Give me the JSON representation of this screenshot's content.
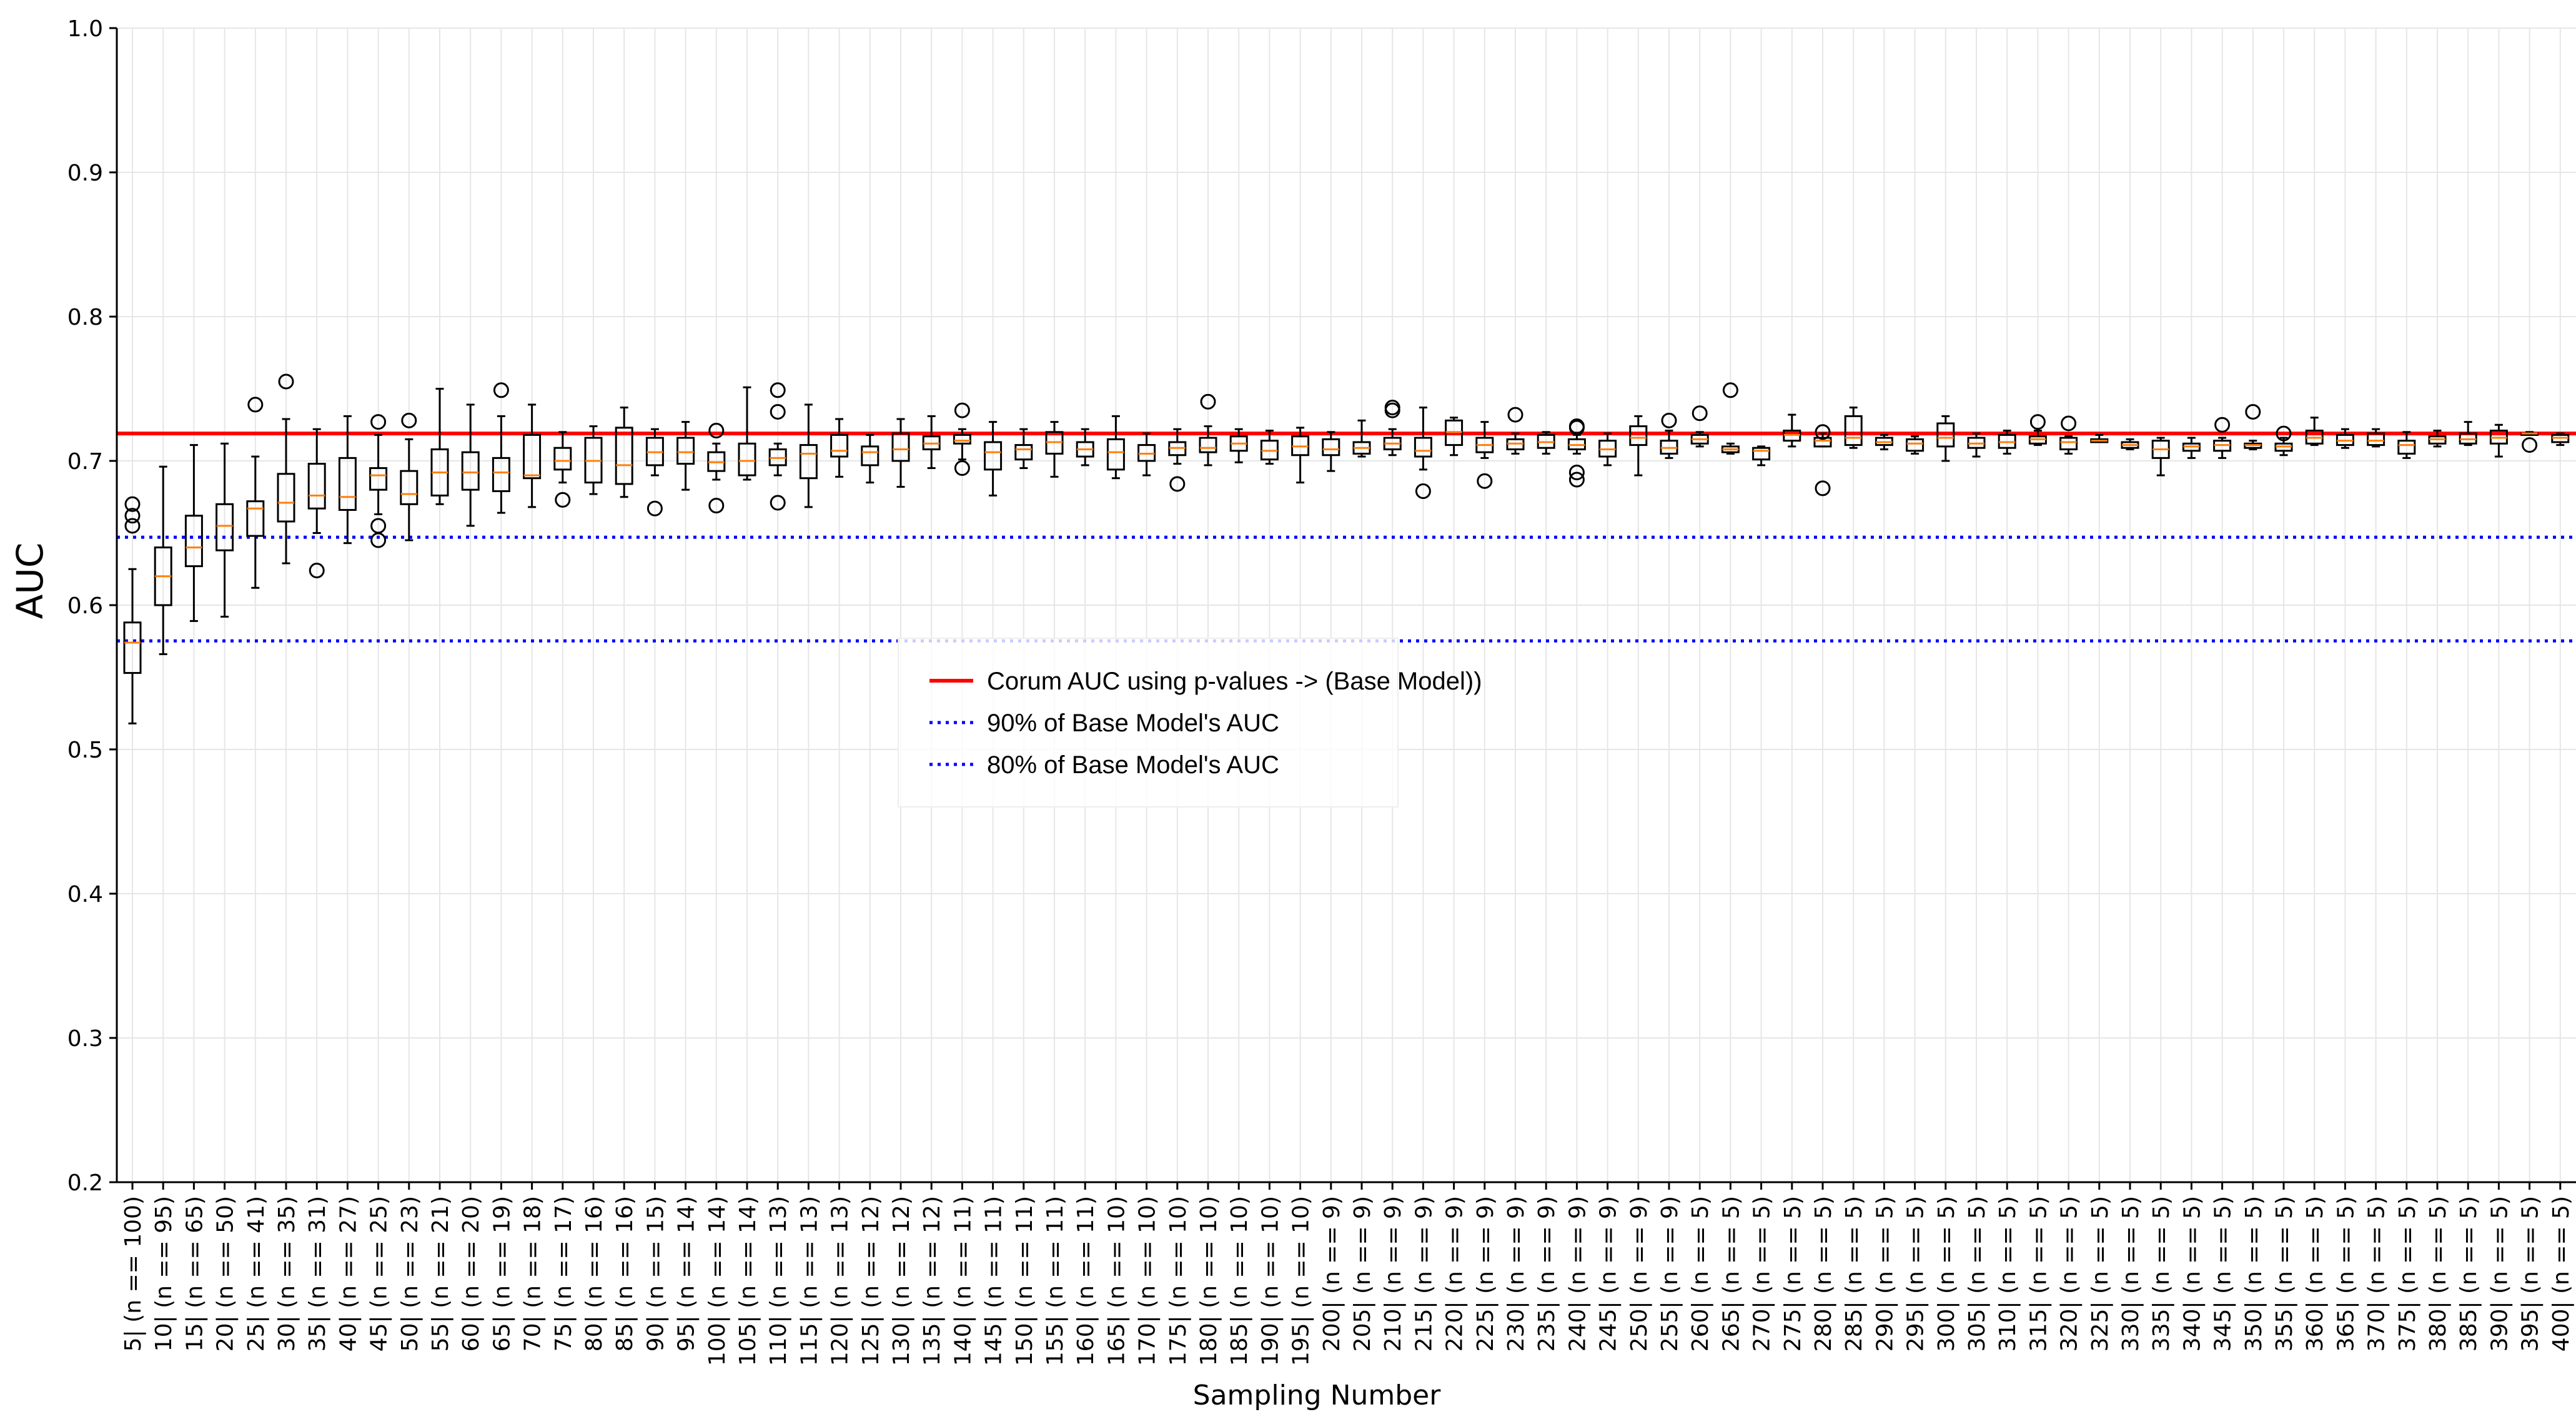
{
  "chart_data": {
    "type": "box",
    "xlabel": "Sampling Number",
    "ylabel": "AUC",
    "ylim": [
      0.2,
      1.0
    ],
    "yticks": [
      "0.2",
      "0.3",
      "0.4",
      "0.5",
      "0.6",
      "0.7",
      "0.8",
      "0.9",
      "1.0"
    ],
    "grid": true,
    "legend_position": "center",
    "categories": [
      "5| (n == 100)",
      "10| (n == 95)",
      "15| (n == 65)",
      "20| (n == 50)",
      "25| (n == 41)",
      "30| (n == 35)",
      "35| (n == 31)",
      "40| (n == 27)",
      "45| (n == 25)",
      "50| (n == 23)",
      "55| (n == 21)",
      "60| (n == 20)",
      "65| (n == 19)",
      "70| (n == 18)",
      "75| (n == 17)",
      "80| (n == 16)",
      "85| (n == 16)",
      "90| (n == 15)",
      "95| (n == 14)",
      "100| (n == 14)",
      "105| (n == 14)",
      "110| (n == 13)",
      "115| (n == 13)",
      "120| (n == 13)",
      "125| (n == 12)",
      "130| (n == 12)",
      "135| (n == 12)",
      "140| (n == 11)",
      "145| (n == 11)",
      "150| (n == 11)",
      "155| (n == 11)",
      "160| (n == 11)",
      "165| (n == 10)",
      "170| (n == 10)",
      "175| (n == 10)",
      "180| (n == 10)",
      "185| (n == 10)",
      "190| (n == 10)",
      "195| (n == 10)",
      "200| (n == 9)",
      "205| (n == 9)",
      "210| (n == 9)",
      "215| (n == 9)",
      "220| (n == 9)",
      "225| (n == 9)",
      "230| (n == 9)",
      "235| (n == 9)",
      "240| (n == 9)",
      "245| (n == 9)",
      "250| (n == 9)",
      "255| (n == 9)",
      "260| (n == 5)",
      "265| (n == 5)",
      "270| (n == 5)",
      "275| (n == 5)",
      "280| (n == 5)",
      "285| (n == 5)",
      "290| (n == 5)",
      "295| (n == 5)",
      "300| (n == 5)",
      "305| (n == 5)",
      "310| (n == 5)",
      "315| (n == 5)",
      "320| (n == 5)",
      "325| (n == 5)",
      "330| (n == 5)",
      "335| (n == 5)",
      "340| (n == 5)",
      "345| (n == 5)",
      "350| (n == 5)",
      "355| (n == 5)",
      "360| (n == 5)",
      "365| (n == 5)",
      "370| (n == 5)",
      "375| (n == 5)",
      "380| (n == 5)",
      "385| (n == 5)",
      "390| (n == 5)",
      "395| (n == 5)",
      "400| (n == 5)"
    ],
    "boxes": [
      {
        "whislo": 0.518,
        "q1": 0.553,
        "med": 0.574,
        "q3": 0.588,
        "whishi": 0.625,
        "fliers": [
          0.655,
          0.662,
          0.67
        ]
      },
      {
        "whislo": 0.566,
        "q1": 0.6,
        "med": 0.62,
        "q3": 0.64,
        "whishi": 0.696,
        "fliers": []
      },
      {
        "whislo": 0.589,
        "q1": 0.627,
        "med": 0.64,
        "q3": 0.662,
        "whishi": 0.711,
        "fliers": []
      },
      {
        "whislo": 0.592,
        "q1": 0.638,
        "med": 0.655,
        "q3": 0.67,
        "whishi": 0.712,
        "fliers": []
      },
      {
        "whislo": 0.612,
        "q1": 0.648,
        "med": 0.667,
        "q3": 0.672,
        "whishi": 0.703,
        "fliers": [
          0.739
        ]
      },
      {
        "whislo": 0.629,
        "q1": 0.658,
        "med": 0.671,
        "q3": 0.691,
        "whishi": 0.729,
        "fliers": [
          0.755
        ]
      },
      {
        "whislo": 0.65,
        "q1": 0.667,
        "med": 0.676,
        "q3": 0.698,
        "whishi": 0.722,
        "fliers": [
          0.624
        ]
      },
      {
        "whislo": 0.643,
        "q1": 0.666,
        "med": 0.675,
        "q3": 0.702,
        "whishi": 0.731,
        "fliers": []
      },
      {
        "whislo": 0.663,
        "q1": 0.68,
        "med": 0.69,
        "q3": 0.695,
        "whishi": 0.718,
        "fliers": [
          0.645,
          0.655,
          0.727
        ]
      },
      {
        "whislo": 0.645,
        "q1": 0.67,
        "med": 0.677,
        "q3": 0.693,
        "whishi": 0.715,
        "fliers": [
          0.728
        ]
      },
      {
        "whislo": 0.67,
        "q1": 0.676,
        "med": 0.692,
        "q3": 0.708,
        "whishi": 0.75,
        "fliers": []
      },
      {
        "whislo": 0.655,
        "q1": 0.68,
        "med": 0.692,
        "q3": 0.706,
        "whishi": 0.739,
        "fliers": []
      },
      {
        "whislo": 0.664,
        "q1": 0.679,
        "med": 0.692,
        "q3": 0.702,
        "whishi": 0.731,
        "fliers": [
          0.749
        ]
      },
      {
        "whislo": 0.668,
        "q1": 0.688,
        "med": 0.69,
        "q3": 0.718,
        "whishi": 0.739,
        "fliers": []
      },
      {
        "whislo": 0.685,
        "q1": 0.694,
        "med": 0.7,
        "q3": 0.709,
        "whishi": 0.72,
        "fliers": [
          0.673
        ]
      },
      {
        "whislo": 0.677,
        "q1": 0.685,
        "med": 0.7,
        "q3": 0.716,
        "whishi": 0.724,
        "fliers": []
      },
      {
        "whislo": 0.675,
        "q1": 0.684,
        "med": 0.697,
        "q3": 0.723,
        "whishi": 0.737,
        "fliers": []
      },
      {
        "whislo": 0.69,
        "q1": 0.697,
        "med": 0.706,
        "q3": 0.716,
        "whishi": 0.722,
        "fliers": [
          0.667
        ]
      },
      {
        "whislo": 0.68,
        "q1": 0.698,
        "med": 0.706,
        "q3": 0.716,
        "whishi": 0.727,
        "fliers": []
      },
      {
        "whislo": 0.687,
        "q1": 0.693,
        "med": 0.699,
        "q3": 0.706,
        "whishi": 0.712,
        "fliers": [
          0.669,
          0.721
        ]
      },
      {
        "whislo": 0.687,
        "q1": 0.69,
        "med": 0.7,
        "q3": 0.712,
        "whishi": 0.751,
        "fliers": []
      },
      {
        "whislo": 0.69,
        "q1": 0.697,
        "med": 0.702,
        "q3": 0.708,
        "whishi": 0.712,
        "fliers": [
          0.671,
          0.734,
          0.749
        ]
      },
      {
        "whislo": 0.668,
        "q1": 0.688,
        "med": 0.705,
        "q3": 0.711,
        "whishi": 0.739,
        "fliers": []
      },
      {
        "whislo": 0.689,
        "q1": 0.703,
        "med": 0.707,
        "q3": 0.718,
        "whishi": 0.729,
        "fliers": []
      },
      {
        "whislo": 0.685,
        "q1": 0.697,
        "med": 0.706,
        "q3": 0.71,
        "whishi": 0.718,
        "fliers": []
      },
      {
        "whislo": 0.682,
        "q1": 0.7,
        "med": 0.708,
        "q3": 0.719,
        "whishi": 0.729,
        "fliers": []
      },
      {
        "whislo": 0.695,
        "q1": 0.708,
        "med": 0.712,
        "q3": 0.717,
        "whishi": 0.731,
        "fliers": []
      },
      {
        "whislo": 0.701,
        "q1": 0.712,
        "med": 0.714,
        "q3": 0.718,
        "whishi": 0.722,
        "fliers": [
          0.695,
          0.735
        ]
      },
      {
        "whislo": 0.676,
        "q1": 0.694,
        "med": 0.706,
        "q3": 0.713,
        "whishi": 0.727,
        "fliers": []
      },
      {
        "whislo": 0.695,
        "q1": 0.701,
        "med": 0.708,
        "q3": 0.711,
        "whishi": 0.722,
        "fliers": []
      },
      {
        "whislo": 0.689,
        "q1": 0.705,
        "med": 0.713,
        "q3": 0.72,
        "whishi": 0.727,
        "fliers": []
      },
      {
        "whislo": 0.697,
        "q1": 0.703,
        "med": 0.708,
        "q3": 0.713,
        "whishi": 0.722,
        "fliers": []
      },
      {
        "whislo": 0.688,
        "q1": 0.694,
        "med": 0.706,
        "q3": 0.715,
        "whishi": 0.731,
        "fliers": []
      },
      {
        "whislo": 0.69,
        "q1": 0.7,
        "med": 0.705,
        "q3": 0.711,
        "whishi": 0.719,
        "fliers": []
      },
      {
        "whislo": 0.698,
        "q1": 0.704,
        "med": 0.709,
        "q3": 0.713,
        "whishi": 0.722,
        "fliers": [
          0.684
        ]
      },
      {
        "whislo": 0.697,
        "q1": 0.706,
        "med": 0.709,
        "q3": 0.716,
        "whishi": 0.724,
        "fliers": [
          0.741
        ]
      },
      {
        "whislo": 0.699,
        "q1": 0.707,
        "med": 0.712,
        "q3": 0.717,
        "whishi": 0.722,
        "fliers": []
      },
      {
        "whislo": 0.698,
        "q1": 0.701,
        "med": 0.707,
        "q3": 0.714,
        "whishi": 0.721,
        "fliers": []
      },
      {
        "whislo": 0.685,
        "q1": 0.704,
        "med": 0.71,
        "q3": 0.717,
        "whishi": 0.723,
        "fliers": []
      },
      {
        "whislo": 0.693,
        "q1": 0.704,
        "med": 0.708,
        "q3": 0.715,
        "whishi": 0.72,
        "fliers": []
      },
      {
        "whislo": 0.703,
        "q1": 0.705,
        "med": 0.709,
        "q3": 0.713,
        "whishi": 0.728,
        "fliers": []
      },
      {
        "whislo": 0.704,
        "q1": 0.708,
        "med": 0.712,
        "q3": 0.716,
        "whishi": 0.722,
        "fliers": [
          0.735,
          0.737
        ]
      },
      {
        "whislo": 0.694,
        "q1": 0.703,
        "med": 0.707,
        "q3": 0.716,
        "whishi": 0.737,
        "fliers": [
          0.679
        ]
      },
      {
        "whislo": 0.704,
        "q1": 0.711,
        "med": 0.72,
        "q3": 0.728,
        "whishi": 0.73,
        "fliers": []
      },
      {
        "whislo": 0.702,
        "q1": 0.706,
        "med": 0.711,
        "q3": 0.716,
        "whishi": 0.727,
        "fliers": [
          0.686
        ]
      },
      {
        "whislo": 0.705,
        "q1": 0.708,
        "med": 0.712,
        "q3": 0.715,
        "whishi": 0.719,
        "fliers": [
          0.732
        ]
      },
      {
        "whislo": 0.705,
        "q1": 0.709,
        "med": 0.713,
        "q3": 0.718,
        "whishi": 0.72,
        "fliers": []
      },
      {
        "whislo": 0.705,
        "q1": 0.708,
        "med": 0.711,
        "q3": 0.715,
        "whishi": 0.718,
        "fliers": [
          0.687,
          0.692,
          0.723,
          0.724
        ]
      },
      {
        "whislo": 0.697,
        "q1": 0.703,
        "med": 0.708,
        "q3": 0.714,
        "whishi": 0.719,
        "fliers": []
      },
      {
        "whislo": 0.69,
        "q1": 0.711,
        "med": 0.716,
        "q3": 0.724,
        "whishi": 0.731,
        "fliers": []
      },
      {
        "whislo": 0.702,
        "q1": 0.705,
        "med": 0.709,
        "q3": 0.714,
        "whishi": 0.721,
        "fliers": [
          0.728
        ]
      },
      {
        "whislo": 0.71,
        "q1": 0.712,
        "med": 0.715,
        "q3": 0.718,
        "whishi": 0.72,
        "fliers": [
          0.733
        ]
      },
      {
        "whislo": 0.705,
        "q1": 0.706,
        "med": 0.708,
        "q3": 0.71,
        "whishi": 0.712,
        "fliers": [
          0.749
        ]
      },
      {
        "whislo": 0.697,
        "q1": 0.701,
        "med": 0.707,
        "q3": 0.709,
        "whishi": 0.71,
        "fliers": []
      },
      {
        "whislo": 0.71,
        "q1": 0.714,
        "med": 0.718,
        "q3": 0.721,
        "whishi": 0.732,
        "fliers": []
      },
      {
        "whislo": 0.71,
        "q1": 0.71,
        "med": 0.714,
        "q3": 0.716,
        "whishi": 0.719,
        "fliers": [
          0.681,
          0.72
        ]
      },
      {
        "whislo": 0.709,
        "q1": 0.711,
        "med": 0.716,
        "q3": 0.731,
        "whishi": 0.737,
        "fliers": []
      },
      {
        "whislo": 0.708,
        "q1": 0.711,
        "med": 0.713,
        "q3": 0.716,
        "whishi": 0.718,
        "fliers": []
      },
      {
        "whislo": 0.705,
        "q1": 0.707,
        "med": 0.712,
        "q3": 0.715,
        "whishi": 0.717,
        "fliers": []
      },
      {
        "whislo": 0.7,
        "q1": 0.71,
        "med": 0.716,
        "q3": 0.726,
        "whishi": 0.731,
        "fliers": []
      },
      {
        "whislo": 0.703,
        "q1": 0.709,
        "med": 0.712,
        "q3": 0.716,
        "whishi": 0.719,
        "fliers": []
      },
      {
        "whislo": 0.705,
        "q1": 0.709,
        "med": 0.713,
        "q3": 0.718,
        "whishi": 0.721,
        "fliers": []
      },
      {
        "whislo": 0.711,
        "q1": 0.712,
        "med": 0.715,
        "q3": 0.717,
        "whishi": 0.721,
        "fliers": [
          0.727
        ]
      },
      {
        "whislo": 0.705,
        "q1": 0.708,
        "med": 0.713,
        "q3": 0.716,
        "whishi": 0.717,
        "fliers": [
          0.726
        ]
      },
      {
        "whislo": 0.713,
        "q1": 0.713,
        "med": 0.714,
        "q3": 0.715,
        "whishi": 0.718,
        "fliers": []
      },
      {
        "whislo": 0.708,
        "q1": 0.709,
        "med": 0.711,
        "q3": 0.713,
        "whishi": 0.715,
        "fliers": []
      },
      {
        "whislo": 0.69,
        "q1": 0.702,
        "med": 0.708,
        "q3": 0.714,
        "whishi": 0.716,
        "fliers": []
      },
      {
        "whislo": 0.702,
        "q1": 0.707,
        "med": 0.71,
        "q3": 0.712,
        "whishi": 0.716,
        "fliers": []
      },
      {
        "whislo": 0.702,
        "q1": 0.707,
        "med": 0.711,
        "q3": 0.714,
        "whishi": 0.716,
        "fliers": [
          0.725
        ]
      },
      {
        "whislo": 0.708,
        "q1": 0.709,
        "med": 0.711,
        "q3": 0.712,
        "whishi": 0.714,
        "fliers": [
          0.734
        ]
      },
      {
        "whislo": 0.704,
        "q1": 0.707,
        "med": 0.71,
        "q3": 0.712,
        "whishi": 0.716,
        "fliers": [
          0.719
        ]
      },
      {
        "whislo": 0.711,
        "q1": 0.712,
        "med": 0.716,
        "q3": 0.721,
        "whishi": 0.73,
        "fliers": []
      },
      {
        "whislo": 0.709,
        "q1": 0.711,
        "med": 0.714,
        "q3": 0.718,
        "whishi": 0.722,
        "fliers": []
      },
      {
        "whislo": 0.71,
        "q1": 0.711,
        "med": 0.714,
        "q3": 0.719,
        "whishi": 0.722,
        "fliers": []
      },
      {
        "whislo": 0.702,
        "q1": 0.705,
        "med": 0.711,
        "q3": 0.714,
        "whishi": 0.72,
        "fliers": []
      },
      {
        "whislo": 0.71,
        "q1": 0.712,
        "med": 0.715,
        "q3": 0.717,
        "whishi": 0.721,
        "fliers": []
      },
      {
        "whislo": 0.711,
        "q1": 0.712,
        "med": 0.715,
        "q3": 0.719,
        "whishi": 0.727,
        "fliers": []
      },
      {
        "whislo": 0.703,
        "q1": 0.712,
        "med": 0.716,
        "q3": 0.721,
        "whishi": 0.725,
        "fliers": []
      },
      {
        "whislo": 0.718,
        "q1": 0.718,
        "med": 0.719,
        "q3": 0.719,
        "whishi": 0.72,
        "fliers": [
          0.711
        ]
      },
      {
        "whislo": 0.711,
        "q1": 0.713,
        "med": 0.716,
        "q3": 0.718,
        "whishi": 0.719,
        "fliers": []
      },
      {
        "whislo": 0.711,
        "q1": 0.714,
        "med": 0.717,
        "q3": 0.721,
        "whishi": 0.724,
        "fliers": []
      }
    ],
    "reference_lines": [
      {
        "label": "Corum AUC using p-values -> (Base Model))",
        "value": 0.719,
        "color": "#ff0000",
        "style": "solid"
      },
      {
        "label": "90% of Base Model's AUC",
        "value": 0.6471,
        "color": "#0000ff",
        "style": "dotted"
      },
      {
        "label": "80% of Base Model's AUC",
        "value": 0.5752,
        "color": "#0000ff",
        "style": "dotted"
      }
    ],
    "colors": {
      "box": "#000000",
      "median": "#ff7f0e",
      "grid": "#e6e6e6"
    }
  }
}
